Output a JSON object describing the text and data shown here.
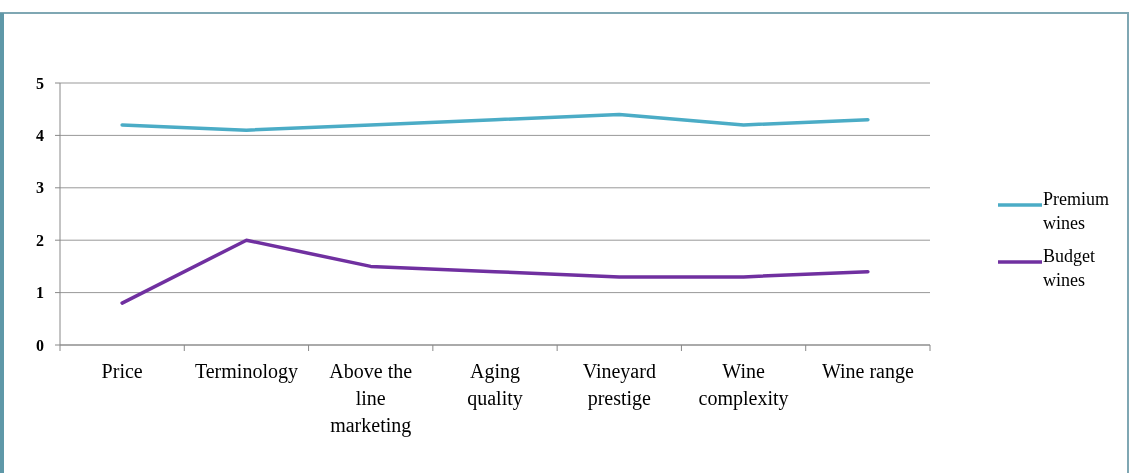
{
  "chart_data": {
    "type": "line",
    "categories": [
      "Price",
      "Terminology",
      "Above the line marketing",
      "Aging quality",
      "Vineyard prestige",
      "Wine complexity",
      "Wine range"
    ],
    "series": [
      {
        "name": "Premium wines",
        "color": "#4bacc6",
        "values": [
          4.2,
          4.1,
          4.2,
          4.3,
          4.4,
          4.2,
          4.3
        ]
      },
      {
        "name": "Budget wines",
        "color": "#7030a0",
        "values": [
          0.8,
          2.0,
          1.5,
          1.4,
          1.3,
          1.3,
          1.4
        ]
      }
    ],
    "ylim": [
      0,
      5
    ],
    "yticks": [
      0,
      1,
      2,
      3,
      4,
      5
    ],
    "grid": "y",
    "legend": "right",
    "marker": "none",
    "line_style": "solid"
  }
}
